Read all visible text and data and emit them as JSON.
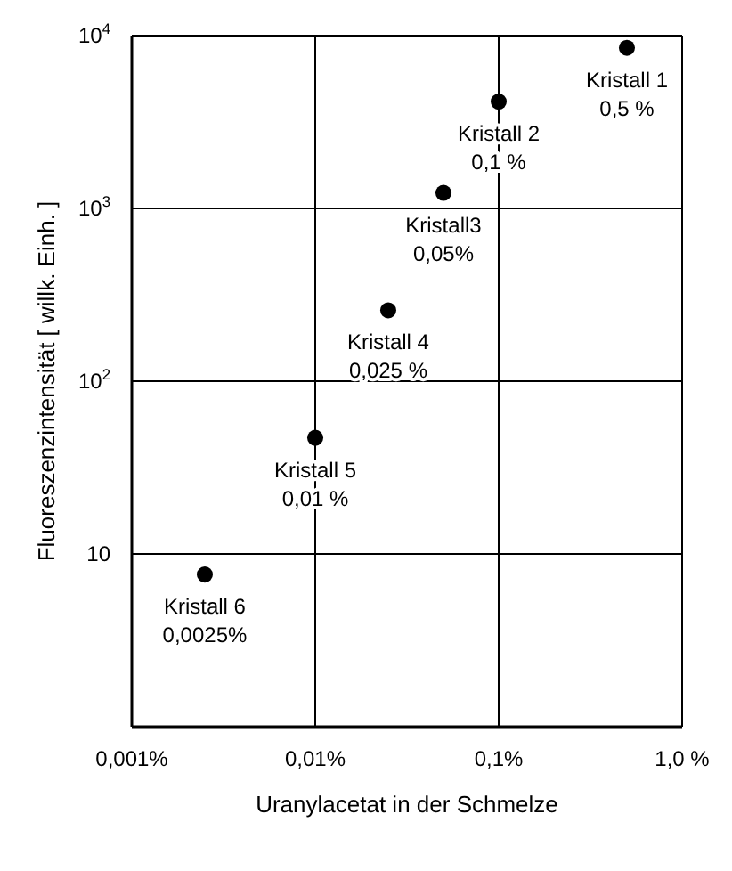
{
  "chart_data": {
    "type": "scatter",
    "xlabel": "Uranylacetat in der Schmelze",
    "ylabel": "Fluoreszenzintensität [ willk. Einh. ]",
    "log": "xy",
    "xlim": [
      0.001,
      1
    ],
    "xticks": [
      {
        "value": 0.001,
        "label": "0,001%"
      },
      {
        "value": 0.01,
        "label": "0,01%"
      },
      {
        "value": 0.1,
        "label": "0,1%"
      },
      {
        "value": 1,
        "label": "1,0 %"
      }
    ],
    "ylim": [
      1,
      10000
    ],
    "yticks": [
      {
        "value": 1,
        "label": null
      },
      {
        "value": 10,
        "label": "10"
      },
      {
        "value": 100,
        "label": "10$^{2}$"
      },
      {
        "value": 1000,
        "label": "10$^{3}$"
      },
      {
        "value": 10000,
        "label": "10$^{4}$"
      }
    ],
    "grid": true,
    "marker": "circle",
    "series": [
      {
        "color": "#000000",
        "x": [
          0.5,
          0.1,
          0.05,
          0.025,
          0.01,
          0.0025
        ],
        "values": [
          8500,
          4150,
          1230,
          257,
          47,
          7.6
        ]
      }
    ],
    "annotations": [
      {
        "text": "Kristall 1\n0,5 %",
        "x": 0.5,
        "y": 8500
      },
      {
        "text": "Kristall 2\n0,1 %",
        "x": 0.1,
        "y": 4150
      },
      {
        "text": "Kristall3\n0,05%",
        "x": 0.05,
        "y": 1230
      },
      {
        "text": "Kristall 4\n0,025 %",
        "x": 0.025,
        "y": 257
      },
      {
        "text": "Kristall 5\n0,01 %",
        "x": 0.01,
        "y": 47
      },
      {
        "text": "Kristall 6\n0,0025%",
        "x": 0.0025,
        "y": 7.6
      }
    ]
  }
}
